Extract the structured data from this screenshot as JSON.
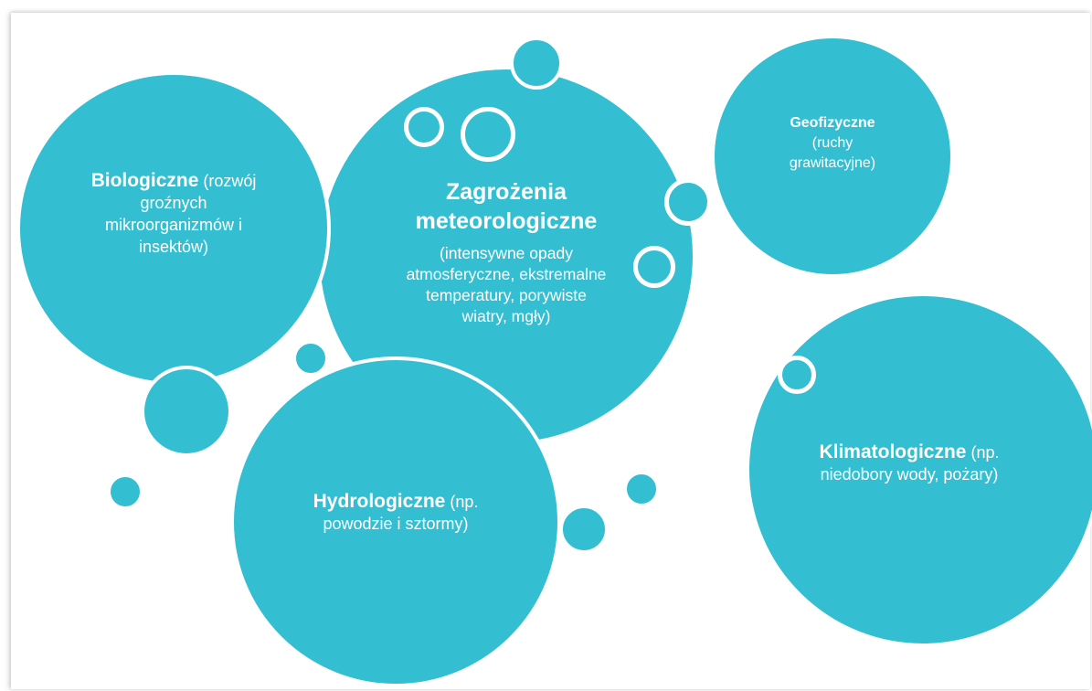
{
  "colors": {
    "teal": "#33bfd1",
    "white": "#ffffff"
  },
  "bubbles": {
    "biological": {
      "title": "Biologiczne",
      "rest_1": " (rozwój",
      "line_2": "groźnych",
      "line_3": "mikroorganizmów i",
      "line_4": "insektów)"
    },
    "meteorological": {
      "title_1": "Zagrożenia",
      "title_2": "meteorologiczne",
      "desc_1": "(intensywne opady",
      "desc_2": "atmosferyczne, ekstremalne",
      "desc_3": "temperatury, porywiste",
      "desc_4": "wiatry, mgły)"
    },
    "geophysical": {
      "title": "Geofizyczne",
      "desc_1": "(ruchy",
      "desc_2": "grawitacyjne)"
    },
    "hydrological": {
      "title": "Hydrologiczne",
      "rest_1": " (np.",
      "line_2": "powodzie i sztormy)"
    },
    "climatological": {
      "title": "Klimatologiczne",
      "rest_1": " (np.",
      "line_2": "niedobory wody, pożary)"
    }
  }
}
